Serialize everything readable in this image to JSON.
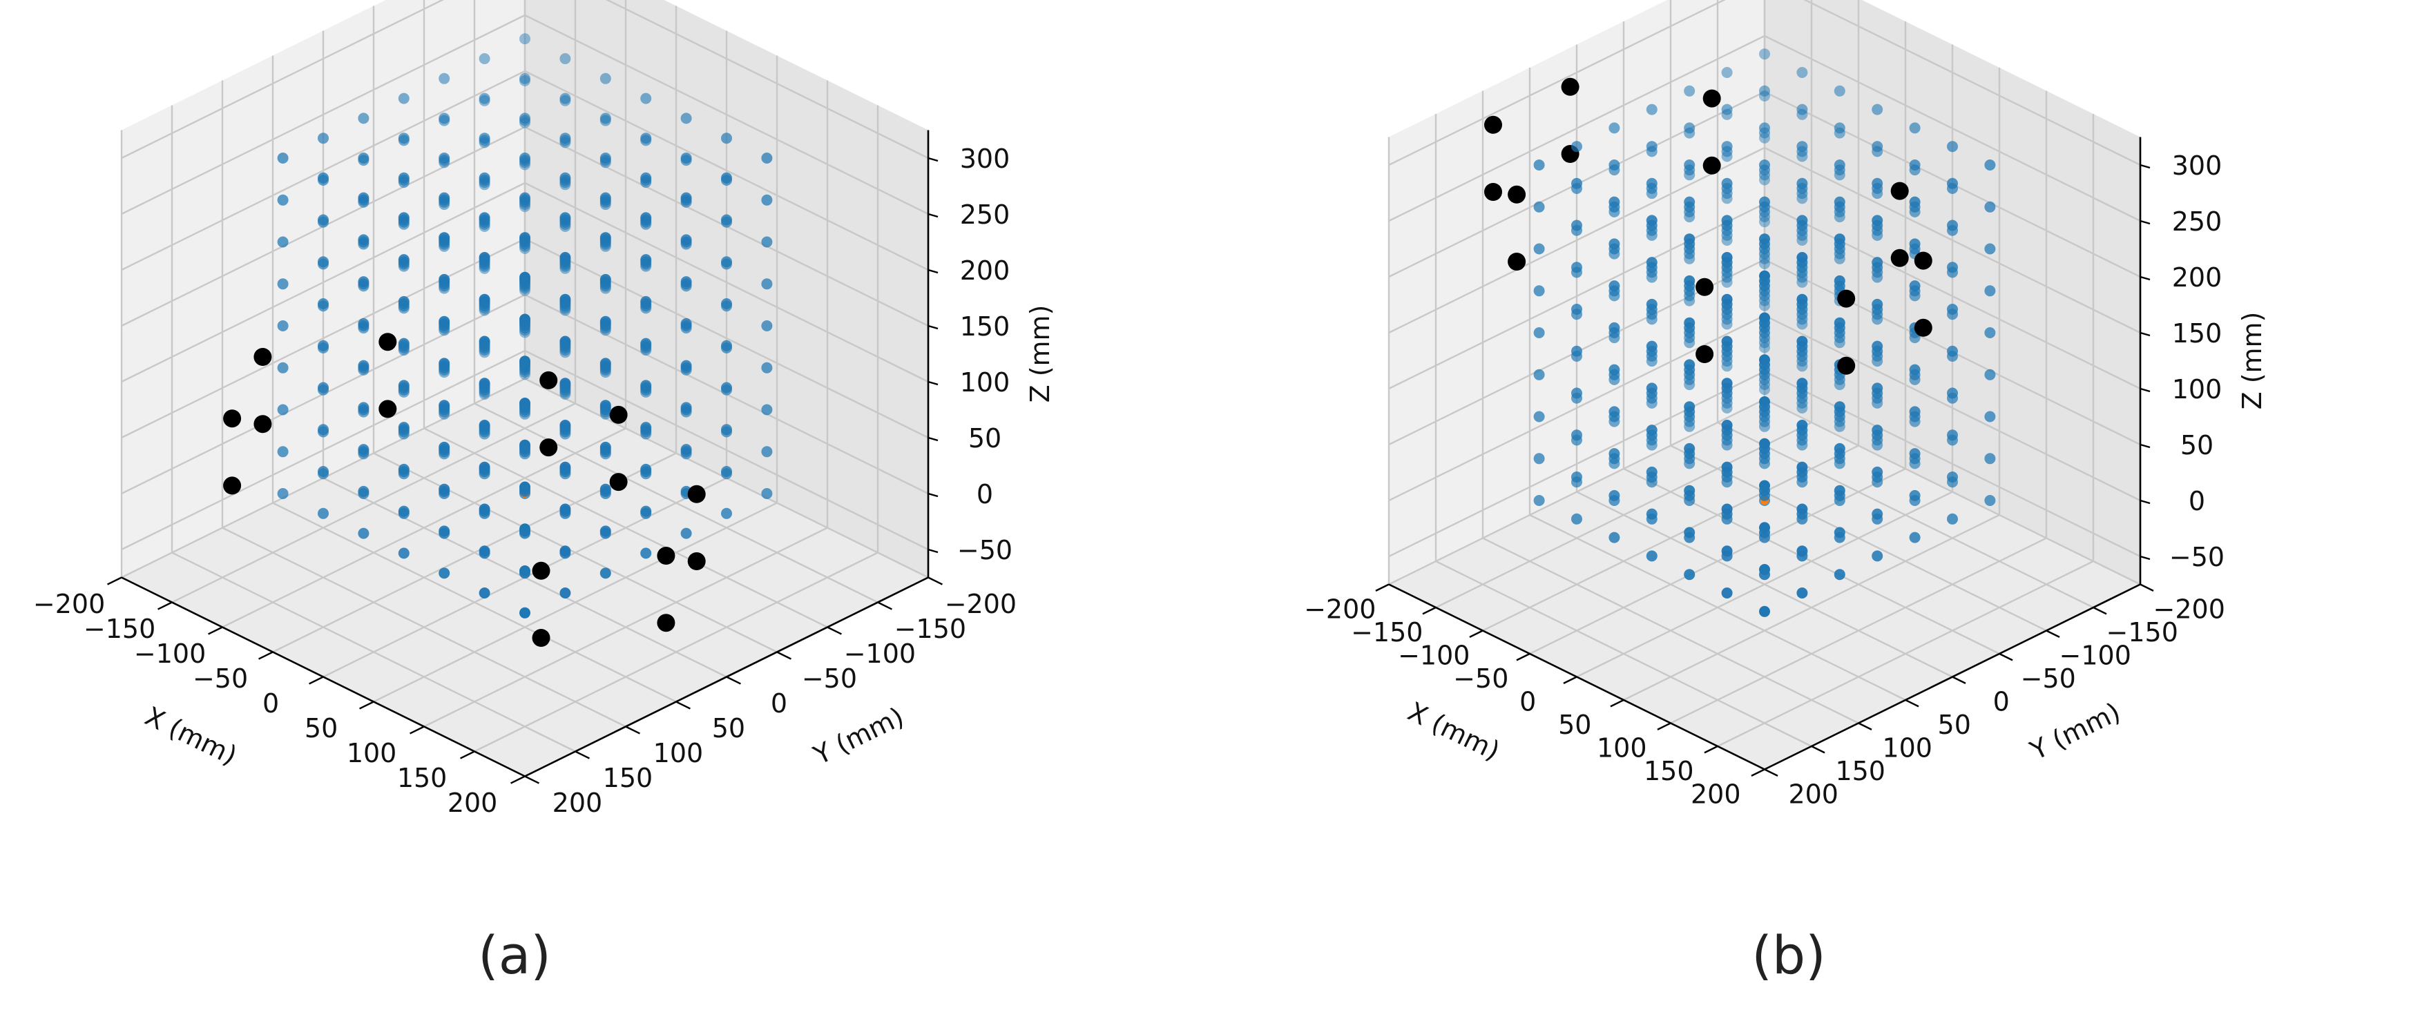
{
  "chart_data": [
    {
      "type": "scatter3d",
      "panel_label": "(a)",
      "xlabel": "X (mm)",
      "ylabel": "Y (mm)",
      "zlabel": "Z (mm)",
      "xlim": [
        -200,
        200
      ],
      "ylim": [
        -200,
        200
      ],
      "zlim": [
        -75,
        325
      ],
      "xticks": [
        "−200",
        "−150",
        "−100",
        "−50",
        "0",
        "50",
        "100",
        "150",
        "200"
      ],
      "yticks": [
        "−200",
        "−150",
        "−100",
        "−50",
        "0",
        "50",
        "100",
        "150",
        "200"
      ],
      "zticks": [
        "−50",
        "0",
        "50",
        "100",
        "150",
        "200",
        "250",
        "300"
      ],
      "grid": true,
      "series": [
        {
          "kind": "grid",
          "color": "#1f77b4",
          "x_range": [
            -120,
            120
          ],
          "y_range": [
            -120,
            120
          ],
          "z_range": [
            0,
            300
          ],
          "steps": [
            7,
            7,
            9
          ]
        },
        {
          "kind": "ring",
          "color": "#000000",
          "radius": 200,
          "z": [
            0,
            60
          ],
          "angles_deg": [
            -130,
            -90,
            -50,
            -10,
            10,
            50,
            90,
            130
          ]
        },
        {
          "kind": "point",
          "color": "#ff7f0e",
          "points": [
            [
              0,
              0,
              0
            ]
          ]
        }
      ]
    },
    {
      "type": "scatter3d",
      "panel_label": "(b)",
      "xlabel": "X (mm)",
      "ylabel": "Y (mm)",
      "zlabel": "Z (mm)",
      "xlim": [
        -200,
        200
      ],
      "ylim": [
        -200,
        200
      ],
      "zlim": [
        -75,
        325
      ],
      "xticks": [
        "−200",
        "−150",
        "−100",
        "−50",
        "0",
        "50",
        "100",
        "150",
        "200"
      ],
      "yticks": [
        "−200",
        "−150",
        "−100",
        "−50",
        "0",
        "50",
        "100",
        "150",
        "200"
      ],
      "zticks": [
        "−50",
        "0",
        "50",
        "100",
        "150",
        "200",
        "250",
        "300"
      ],
      "grid": true,
      "series": [
        {
          "kind": "grid",
          "color": "#1f77b4",
          "x_range": [
            -120,
            120
          ],
          "y_range": [
            -120,
            120
          ],
          "z_range": [
            0,
            300
          ],
          "steps": [
            7,
            7,
            9
          ]
        },
        {
          "kind": "ring",
          "color": "#000000",
          "radius": 200,
          "z": [
            240,
            300
          ],
          "angles_deg": [
            -150,
            -110,
            -70,
            -30,
            30,
            70,
            110,
            150
          ]
        },
        {
          "kind": "point",
          "color": "#ff7f0e",
          "points": [
            [
              0,
              0,
              0
            ]
          ]
        }
      ]
    }
  ]
}
